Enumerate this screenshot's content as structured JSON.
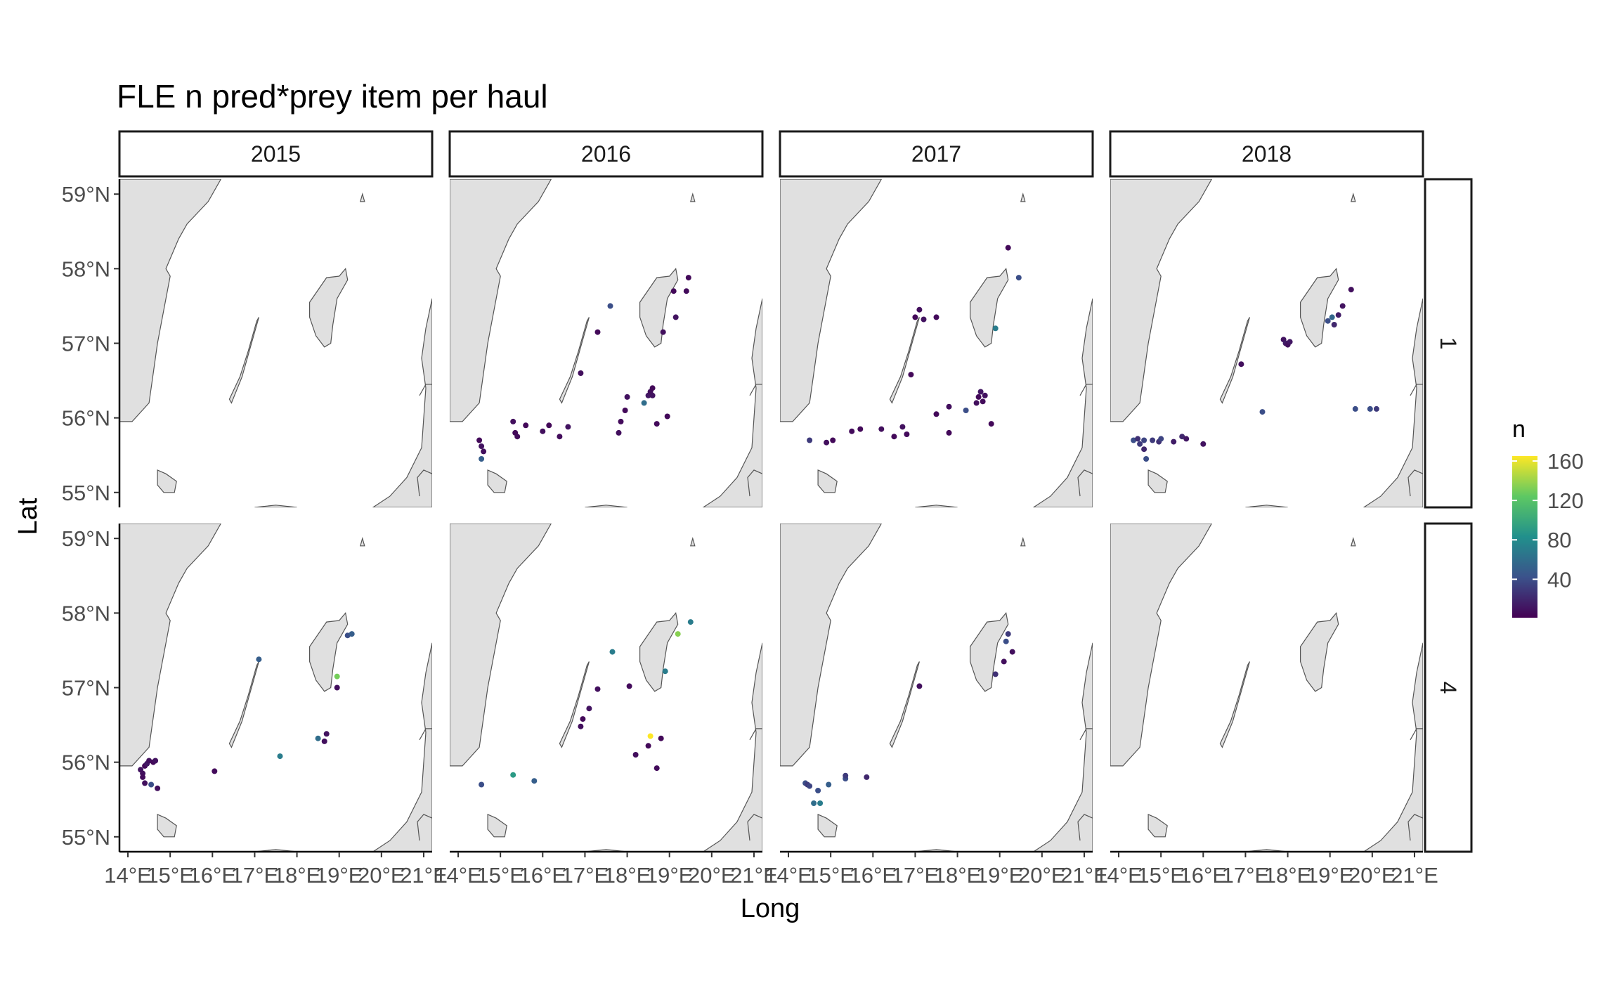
{
  "chart_data": {
    "type": "scatter",
    "title": "FLE n pred*prey item per haul",
    "xlabel": "Long",
    "ylabel": "Lat",
    "xlim": [
      13.8,
      21.2
    ],
    "ylim": [
      54.8,
      59.2
    ],
    "x_ticks": [
      14,
      15,
      16,
      17,
      18,
      19,
      20,
      21
    ],
    "x_tick_labels": [
      "14°E",
      "15°E",
      "16°E",
      "17°E",
      "18°E",
      "19°E",
      "20°E",
      "21°E"
    ],
    "y_ticks": [
      55,
      56,
      57,
      58,
      59
    ],
    "y_tick_labels": [
      "55°N",
      "56°N",
      "57°N",
      "58°N",
      "59°N"
    ],
    "facet_cols": [
      "2015",
      "2016",
      "2017",
      "2018"
    ],
    "facet_rows": [
      "1",
      "4"
    ],
    "color_scale": {
      "name": "n",
      "type": "viridis",
      "limits": [
        1,
        165
      ],
      "breaks": [
        40,
        80,
        120,
        160
      ],
      "colors": [
        "#440154",
        "#3b528b",
        "#21908c",
        "#5dc863",
        "#fde725"
      ]
    },
    "land_color": "#e0e0e0",
    "coast_color": "#555555",
    "panels": [
      {
        "year": "2015",
        "quarter": "1",
        "points": []
      },
      {
        "year": "2016",
        "quarter": "1",
        "points": [
          {
            "lon": 14.5,
            "lat": 55.7,
            "n": 5
          },
          {
            "lon": 14.55,
            "lat": 55.62,
            "n": 10
          },
          {
            "lon": 14.6,
            "lat": 55.55,
            "n": 8
          },
          {
            "lon": 14.55,
            "lat": 55.45,
            "n": 50
          },
          {
            "lon": 15.3,
            "lat": 55.95,
            "n": 8
          },
          {
            "lon": 15.35,
            "lat": 55.8,
            "n": 5
          },
          {
            "lon": 15.4,
            "lat": 55.75,
            "n": 6
          },
          {
            "lon": 15.6,
            "lat": 55.9,
            "n": 5
          },
          {
            "lon": 16.0,
            "lat": 55.82,
            "n": 8
          },
          {
            "lon": 16.15,
            "lat": 55.9,
            "n": 5
          },
          {
            "lon": 16.4,
            "lat": 55.75,
            "n": 7
          },
          {
            "lon": 16.6,
            "lat": 55.88,
            "n": 10
          },
          {
            "lon": 16.9,
            "lat": 56.6,
            "n": 8
          },
          {
            "lon": 17.3,
            "lat": 57.15,
            "n": 5
          },
          {
            "lon": 17.6,
            "lat": 57.5,
            "n": 40
          },
          {
            "lon": 17.8,
            "lat": 55.8,
            "n": 8
          },
          {
            "lon": 17.85,
            "lat": 55.95,
            "n": 6
          },
          {
            "lon": 17.95,
            "lat": 56.1,
            "n": 5
          },
          {
            "lon": 18.0,
            "lat": 56.28,
            "n": 9
          },
          {
            "lon": 18.4,
            "lat": 56.2,
            "n": 60
          },
          {
            "lon": 18.5,
            "lat": 56.3,
            "n": 12
          },
          {
            "lon": 18.55,
            "lat": 56.35,
            "n": 8
          },
          {
            "lon": 18.6,
            "lat": 56.4,
            "n": 5
          },
          {
            "lon": 18.6,
            "lat": 56.3,
            "n": 10
          },
          {
            "lon": 18.7,
            "lat": 55.92,
            "n": 6
          },
          {
            "lon": 18.85,
            "lat": 57.15,
            "n": 8
          },
          {
            "lon": 18.95,
            "lat": 56.02,
            "n": 5
          },
          {
            "lon": 19.1,
            "lat": 57.7,
            "n": 5
          },
          {
            "lon": 19.15,
            "lat": 57.35,
            "n": 10
          },
          {
            "lon": 19.4,
            "lat": 57.7,
            "n": 6
          },
          {
            "lon": 19.45,
            "lat": 57.88,
            "n": 5
          }
        ]
      },
      {
        "year": "2017",
        "quarter": "1",
        "points": [
          {
            "lon": 14.5,
            "lat": 55.7,
            "n": 30
          },
          {
            "lon": 14.9,
            "lat": 55.67,
            "n": 8
          },
          {
            "lon": 15.05,
            "lat": 55.7,
            "n": 5
          },
          {
            "lon": 15.5,
            "lat": 55.82,
            "n": 6
          },
          {
            "lon": 15.7,
            "lat": 55.85,
            "n": 5
          },
          {
            "lon": 16.2,
            "lat": 55.85,
            "n": 8
          },
          {
            "lon": 16.5,
            "lat": 55.75,
            "n": 5
          },
          {
            "lon": 16.7,
            "lat": 55.88,
            "n": 9
          },
          {
            "lon": 16.8,
            "lat": 55.78,
            "n": 6
          },
          {
            "lon": 16.9,
            "lat": 56.58,
            "n": 5
          },
          {
            "lon": 17.0,
            "lat": 57.35,
            "n": 5
          },
          {
            "lon": 17.1,
            "lat": 57.45,
            "n": 8
          },
          {
            "lon": 17.2,
            "lat": 57.32,
            "n": 10
          },
          {
            "lon": 17.5,
            "lat": 57.35,
            "n": 6
          },
          {
            "lon": 17.5,
            "lat": 56.05,
            "n": 5
          },
          {
            "lon": 17.8,
            "lat": 56.15,
            "n": 8
          },
          {
            "lon": 17.8,
            "lat": 55.8,
            "n": 5
          },
          {
            "lon": 18.2,
            "lat": 56.1,
            "n": 40
          },
          {
            "lon": 18.45,
            "lat": 56.2,
            "n": 8
          },
          {
            "lon": 18.5,
            "lat": 56.28,
            "n": 5
          },
          {
            "lon": 18.55,
            "lat": 56.35,
            "n": 12
          },
          {
            "lon": 18.6,
            "lat": 56.22,
            "n": 6
          },
          {
            "lon": 18.65,
            "lat": 56.3,
            "n": 9
          },
          {
            "lon": 18.8,
            "lat": 55.92,
            "n": 5
          },
          {
            "lon": 18.9,
            "lat": 57.2,
            "n": 70
          },
          {
            "lon": 19.2,
            "lat": 58.28,
            "n": 5
          },
          {
            "lon": 19.45,
            "lat": 57.88,
            "n": 40
          }
        ]
      },
      {
        "year": "2018",
        "quarter": "1",
        "points": [
          {
            "lon": 14.35,
            "lat": 55.7,
            "n": 40
          },
          {
            "lon": 14.45,
            "lat": 55.72,
            "n": 25
          },
          {
            "lon": 14.5,
            "lat": 55.65,
            "n": 30
          },
          {
            "lon": 14.6,
            "lat": 55.7,
            "n": 35
          },
          {
            "lon": 14.6,
            "lat": 55.58,
            "n": 20
          },
          {
            "lon": 14.65,
            "lat": 55.45,
            "n": 40
          },
          {
            "lon": 14.8,
            "lat": 55.7,
            "n": 30
          },
          {
            "lon": 14.95,
            "lat": 55.68,
            "n": 25
          },
          {
            "lon": 15.0,
            "lat": 55.72,
            "n": 35
          },
          {
            "lon": 15.3,
            "lat": 55.68,
            "n": 15
          },
          {
            "lon": 15.5,
            "lat": 55.75,
            "n": 20
          },
          {
            "lon": 15.6,
            "lat": 55.72,
            "n": 12
          },
          {
            "lon": 16.0,
            "lat": 55.65,
            "n": 10
          },
          {
            "lon": 16.9,
            "lat": 56.72,
            "n": 8
          },
          {
            "lon": 17.9,
            "lat": 57.05,
            "n": 10
          },
          {
            "lon": 17.95,
            "lat": 57.0,
            "n": 15
          },
          {
            "lon": 18.0,
            "lat": 56.98,
            "n": 8
          },
          {
            "lon": 18.05,
            "lat": 57.02,
            "n": 12
          },
          {
            "lon": 17.4,
            "lat": 56.08,
            "n": 40
          },
          {
            "lon": 18.95,
            "lat": 57.3,
            "n": 40
          },
          {
            "lon": 19.05,
            "lat": 57.35,
            "n": 55
          },
          {
            "lon": 19.1,
            "lat": 57.25,
            "n": 20
          },
          {
            "lon": 19.2,
            "lat": 57.38,
            "n": 15
          },
          {
            "lon": 19.3,
            "lat": 57.5,
            "n": 10
          },
          {
            "lon": 19.5,
            "lat": 57.72,
            "n": 8
          },
          {
            "lon": 19.6,
            "lat": 56.12,
            "n": 40
          },
          {
            "lon": 19.95,
            "lat": 56.12,
            "n": 40
          },
          {
            "lon": 20.1,
            "lat": 56.12,
            "n": 30
          }
        ]
      },
      {
        "year": "2015",
        "quarter": "4",
        "points": [
          {
            "lon": 14.3,
            "lat": 55.9,
            "n": 10
          },
          {
            "lon": 14.35,
            "lat": 55.85,
            "n": 8
          },
          {
            "lon": 14.4,
            "lat": 55.95,
            "n": 5
          },
          {
            "lon": 14.45,
            "lat": 55.98,
            "n": 12
          },
          {
            "lon": 14.35,
            "lat": 55.8,
            "n": 6
          },
          {
            "lon": 14.5,
            "lat": 56.02,
            "n": 8
          },
          {
            "lon": 14.6,
            "lat": 56.0,
            "n": 5
          },
          {
            "lon": 14.65,
            "lat": 56.02,
            "n": 9
          },
          {
            "lon": 14.4,
            "lat": 55.72,
            "n": 8
          },
          {
            "lon": 14.55,
            "lat": 55.7,
            "n": 40
          },
          {
            "lon": 14.7,
            "lat": 55.65,
            "n": 8
          },
          {
            "lon": 16.05,
            "lat": 55.88,
            "n": 6
          },
          {
            "lon": 17.1,
            "lat": 57.38,
            "n": 50
          },
          {
            "lon": 17.6,
            "lat": 56.08,
            "n": 70
          },
          {
            "lon": 18.5,
            "lat": 56.32,
            "n": 60
          },
          {
            "lon": 18.65,
            "lat": 56.28,
            "n": 8
          },
          {
            "lon": 18.7,
            "lat": 56.38,
            "n": 10
          },
          {
            "lon": 18.95,
            "lat": 57.15,
            "n": 130
          },
          {
            "lon": 18.95,
            "lat": 57.0,
            "n": 8
          },
          {
            "lon": 19.2,
            "lat": 57.7,
            "n": 40
          },
          {
            "lon": 19.3,
            "lat": 57.72,
            "n": 50
          }
        ]
      },
      {
        "year": "2016",
        "quarter": "4",
        "points": [
          {
            "lon": 14.55,
            "lat": 55.7,
            "n": 40
          },
          {
            "lon": 15.3,
            "lat": 55.83,
            "n": 90
          },
          {
            "lon": 15.8,
            "lat": 55.75,
            "n": 50
          },
          {
            "lon": 16.9,
            "lat": 56.48,
            "n": 8
          },
          {
            "lon": 16.95,
            "lat": 56.58,
            "n": 5
          },
          {
            "lon": 17.1,
            "lat": 56.72,
            "n": 10
          },
          {
            "lon": 17.3,
            "lat": 56.98,
            "n": 8
          },
          {
            "lon": 17.65,
            "lat": 57.48,
            "n": 70
          },
          {
            "lon": 18.05,
            "lat": 57.02,
            "n": 6
          },
          {
            "lon": 18.2,
            "lat": 56.1,
            "n": 8
          },
          {
            "lon": 18.5,
            "lat": 56.22,
            "n": 5
          },
          {
            "lon": 18.55,
            "lat": 56.35,
            "n": 165
          },
          {
            "lon": 18.7,
            "lat": 55.92,
            "n": 6
          },
          {
            "lon": 18.8,
            "lat": 56.32,
            "n": 5
          },
          {
            "lon": 18.9,
            "lat": 57.22,
            "n": 70
          },
          {
            "lon": 19.2,
            "lat": 57.72,
            "n": 135
          },
          {
            "lon": 19.5,
            "lat": 57.88,
            "n": 70
          }
        ]
      },
      {
        "year": "2017",
        "quarter": "4",
        "points": [
          {
            "lon": 14.4,
            "lat": 55.72,
            "n": 40
          },
          {
            "lon": 14.45,
            "lat": 55.7,
            "n": 30
          },
          {
            "lon": 14.5,
            "lat": 55.68,
            "n": 35
          },
          {
            "lon": 14.6,
            "lat": 55.45,
            "n": 60
          },
          {
            "lon": 14.75,
            "lat": 55.45,
            "n": 70
          },
          {
            "lon": 14.7,
            "lat": 55.62,
            "n": 40
          },
          {
            "lon": 14.95,
            "lat": 55.7,
            "n": 50
          },
          {
            "lon": 15.35,
            "lat": 55.78,
            "n": 40
          },
          {
            "lon": 15.35,
            "lat": 55.82,
            "n": 30
          },
          {
            "lon": 15.85,
            "lat": 55.8,
            "n": 20
          },
          {
            "lon": 17.1,
            "lat": 57.02,
            "n": 8
          },
          {
            "lon": 18.9,
            "lat": 57.18,
            "n": 25
          },
          {
            "lon": 19.1,
            "lat": 57.35,
            "n": 8
          },
          {
            "lon": 19.15,
            "lat": 57.62,
            "n": 40
          },
          {
            "lon": 19.2,
            "lat": 57.72,
            "n": 30
          },
          {
            "lon": 19.3,
            "lat": 57.48,
            "n": 8
          }
        ]
      },
      {
        "year": "2018",
        "quarter": "4",
        "points": []
      }
    ]
  }
}
